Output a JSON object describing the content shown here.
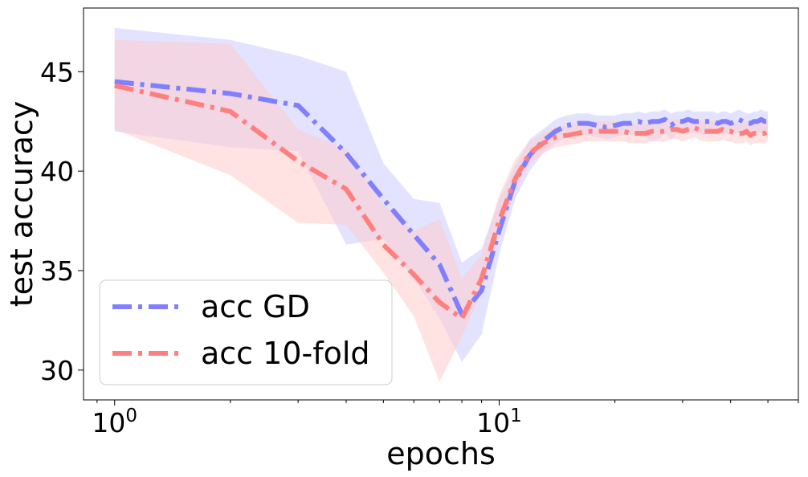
{
  "chart_data": {
    "type": "line",
    "title": "",
    "xlabel": "epochs",
    "ylabel": "test accuracy",
    "xscale": "log",
    "xlim": [
      0.83,
      60
    ],
    "ylim": [
      28.5,
      48.2
    ],
    "x_ticks": [
      {
        "value": 1,
        "base": "10",
        "exp": "0"
      },
      {
        "value": 10,
        "base": "10",
        "exp": "1"
      }
    ],
    "y_ticks": [
      {
        "value": 30,
        "label": "30"
      },
      {
        "value": 35,
        "label": "35"
      },
      {
        "value": 40,
        "label": "40"
      },
      {
        "value": 45,
        "label": "45"
      }
    ],
    "grid": false,
    "legend": {
      "placement": "lower-left"
    },
    "x": [
      1,
      2,
      3,
      4,
      5,
      6,
      7,
      8,
      9,
      10,
      11,
      12,
      13,
      14,
      15,
      16,
      17,
      18,
      19,
      20,
      21,
      22,
      23,
      24,
      25,
      26,
      27,
      28,
      29,
      30,
      31,
      32,
      33,
      34,
      35,
      36,
      37,
      38,
      39,
      40,
      41,
      42,
      43,
      44,
      45,
      46,
      47,
      48,
      49,
      50
    ],
    "series": [
      {
        "name": "acc GD",
        "color": "#7f7fff",
        "band_color": "#ccccff",
        "values": [
          44.5,
          43.9,
          43.3,
          40.9,
          38.6,
          36.8,
          35.3,
          32.8,
          34.0,
          37.0,
          39.5,
          40.8,
          41.5,
          42.0,
          42.3,
          42.4,
          42.4,
          42.3,
          42.2,
          42.3,
          42.4,
          42.4,
          42.5,
          42.4,
          42.5,
          42.5,
          42.6,
          42.3,
          42.5,
          42.5,
          42.6,
          42.5,
          42.5,
          42.5,
          42.5,
          42.5,
          42.4,
          42.5,
          42.5,
          42.4,
          42.5,
          42.6,
          42.5,
          42.4,
          42.4,
          42.5,
          42.5,
          42.6,
          42.5,
          42.5
        ],
        "lower": [
          42.0,
          41.2,
          41.0,
          36.3,
          36.6,
          34.6,
          32.6,
          30.4,
          31.8,
          35.8,
          38.6,
          40.0,
          40.9,
          41.4,
          41.7,
          41.8,
          41.8,
          41.7,
          41.6,
          41.7,
          41.8,
          41.8,
          41.8,
          41.7,
          41.5,
          41.6,
          41.9,
          41.6,
          41.9,
          41.9,
          41.9,
          41.9,
          41.9,
          41.8,
          41.9,
          41.9,
          41.8,
          41.9,
          41.9,
          41.8,
          41.9,
          41.9,
          41.9,
          41.8,
          41.8,
          41.9,
          41.9,
          41.9,
          41.9,
          41.9
        ],
        "upper": [
          47.2,
          46.6,
          45.8,
          45.0,
          40.4,
          38.6,
          38.4,
          35.4,
          36.1,
          38.6,
          40.3,
          41.6,
          42.1,
          42.6,
          42.8,
          42.9,
          42.9,
          42.8,
          42.8,
          42.8,
          42.9,
          42.9,
          43.0,
          42.9,
          43.0,
          43.0,
          43.1,
          42.9,
          43.0,
          43.0,
          43.1,
          43.0,
          43.0,
          43.0,
          43.0,
          43.0,
          42.9,
          43.0,
          43.0,
          42.9,
          43.0,
          43.1,
          43.0,
          42.9,
          42.9,
          43.0,
          43.0,
          43.1,
          43.0,
          43.0
        ]
      },
      {
        "name": "acc 10-fold",
        "color": "#ff7f7f",
        "band_color": "#ffcccc",
        "values": [
          44.3,
          43.0,
          40.5,
          39.1,
          36.3,
          34.8,
          33.4,
          32.6,
          34.6,
          37.5,
          39.6,
          40.9,
          41.4,
          41.7,
          41.8,
          41.9,
          42.0,
          42.0,
          42.0,
          42.0,
          42.0,
          41.9,
          41.9,
          41.9,
          42.0,
          42.0,
          42.0,
          42.1,
          42.1,
          42.0,
          42.1,
          42.2,
          42.1,
          42.0,
          42.0,
          42.0,
          42.0,
          42.1,
          42.0,
          42.0,
          41.9,
          41.9,
          41.9,
          42.0,
          41.8,
          41.9,
          41.9,
          41.9,
          41.9,
          42.0
        ],
        "lower": [
          42.1,
          39.8,
          37.4,
          37.3,
          34.9,
          32.7,
          29.4,
          31.7,
          33.9,
          36.8,
          39.0,
          40.4,
          40.9,
          41.2,
          41.3,
          41.4,
          41.5,
          41.5,
          41.5,
          41.5,
          41.5,
          41.4,
          41.4,
          41.4,
          41.5,
          41.5,
          41.5,
          41.6,
          41.6,
          41.5,
          41.6,
          41.7,
          41.6,
          41.5,
          41.5,
          41.5,
          41.5,
          41.6,
          41.5,
          41.5,
          41.4,
          41.4,
          41.4,
          41.5,
          41.3,
          41.4,
          41.4,
          41.4,
          41.4,
          41.5
        ],
        "upper": [
          46.6,
          46.4,
          42.1,
          41.1,
          38.3,
          37.0,
          37.6,
          34.6,
          35.8,
          38.8,
          40.6,
          41.5,
          41.9,
          42.2,
          42.3,
          42.4,
          42.5,
          42.5,
          42.5,
          42.5,
          42.5,
          42.4,
          42.4,
          42.4,
          42.5,
          42.5,
          42.5,
          42.6,
          42.6,
          42.5,
          42.6,
          42.7,
          42.6,
          42.5,
          42.5,
          42.5,
          42.5,
          42.6,
          42.5,
          42.5,
          42.4,
          42.4,
          42.4,
          42.5,
          42.3,
          42.4,
          42.4,
          42.4,
          42.4,
          42.5
        ]
      }
    ]
  }
}
